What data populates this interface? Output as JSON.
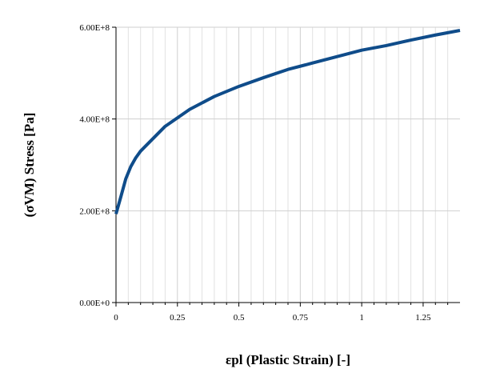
{
  "chart_data": {
    "type": "line",
    "x_label": "εpl (Plastic Strain) [-]",
    "y_label": "(σVM) Stress [Pa]",
    "x": [
      0,
      0.02,
      0.04,
      0.06,
      0.08,
      0.1,
      0.2,
      0.3,
      0.4,
      0.5,
      0.6,
      0.7,
      0.8,
      0.9,
      1.0,
      1.1,
      1.2,
      1.3,
      1.4
    ],
    "series": [
      {
        "color": "#0f4c8a",
        "values": [
          193000000,
          231000000,
          270000000,
          296000000,
          315000000,
          330000000,
          384000000,
          421000000,
          449000000,
          471000000,
          490000000,
          508000000,
          522000000,
          536000000,
          550000000,
          560000000,
          572000000,
          583000000,
          593000000
        ]
      }
    ],
    "xlim": [
      0,
      1.4
    ],
    "ylim": [
      0,
      600000000
    ],
    "xticks": [
      0,
      0.25,
      0.5,
      0.75,
      1,
      1.25
    ],
    "xminorticks": [
      0.05,
      0.1,
      0.15,
      0.2,
      0.3,
      0.35,
      0.4,
      0.45,
      0.55,
      0.6,
      0.65,
      0.7,
      0.8,
      0.85,
      0.9,
      0.95,
      1.05,
      1.1,
      1.15,
      1.2,
      1.3,
      1.35
    ],
    "yticks": [
      {
        "value": 0,
        "label": "0.00E+0"
      },
      {
        "value": 200000000,
        "label": "2.00E+8"
      },
      {
        "value": 400000000,
        "label": "4.00E+8"
      },
      {
        "value": 600000000,
        "label": "6.00E+8"
      }
    ],
    "grid": true
  }
}
